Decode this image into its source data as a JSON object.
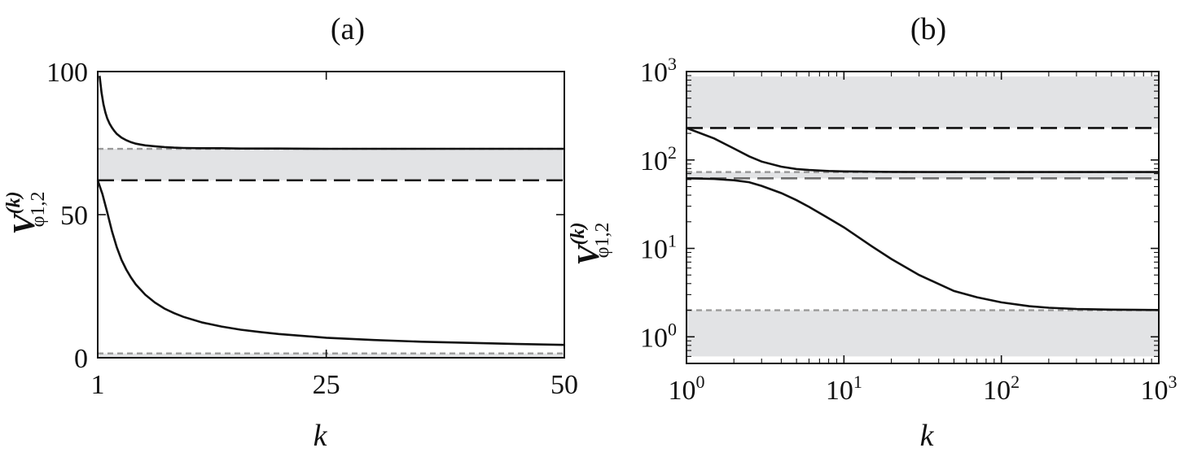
{
  "chart_data": [
    {
      "panel": "(a)",
      "type": "line",
      "xlabel": "k",
      "ylabel": {
        "main": "V",
        "sup": "(k)",
        "sub": "φ1,2"
      },
      "xlim": [
        1,
        50
      ],
      "ylim": [
        0,
        100
      ],
      "xticks": [
        1,
        25,
        50
      ],
      "yticks": [
        0,
        50,
        100
      ],
      "bands": [
        {
          "y0": 62,
          "y1": 73
        },
        {
          "y0": 0,
          "y1": 1.5
        }
      ],
      "reference_lines": [
        {
          "y": 73,
          "style": "dotted-grey"
        },
        {
          "y": 62,
          "style": "dashed-black"
        },
        {
          "y": 1.5,
          "style": "dotted-grey"
        }
      ],
      "series": [
        {
          "x": [
            1.2,
            1.4,
            1.6,
            1.8,
            2,
            2.25,
            2.5,
            2.75,
            3,
            3.5,
            4,
            4.5,
            5,
            5.5,
            6,
            7,
            8,
            9,
            10,
            12,
            14,
            16,
            18,
            20,
            25,
            30,
            35,
            40,
            45,
            50
          ],
          "y": [
            98.5,
            92.6,
            88.6,
            85.7,
            83.6,
            81.8,
            80.4,
            79.2,
            78.2,
            76.9,
            76.0,
            75.3,
            74.8,
            74.5,
            74.2,
            73.9,
            73.6,
            73.4,
            73.3,
            73.2,
            73.2,
            73.1,
            73.1,
            73.1,
            73.0,
            73.0,
            73.0,
            73.0,
            73.0,
            73.0
          ]
        },
        {
          "x": [
            1,
            1.5,
            2,
            2.5,
            3,
            3.5,
            4,
            4.5,
            5,
            6,
            7,
            8,
            9,
            10,
            12,
            14,
            16,
            18,
            20,
            25,
            30,
            35,
            40,
            45,
            50
          ],
          "y": [
            62,
            57.2,
            50.8,
            44.2,
            38.6,
            34.2,
            30.8,
            28.0,
            25.6,
            22.0,
            19.3,
            17.2,
            15.6,
            14.3,
            12.3,
            10.9,
            9.8,
            9.0,
            8.3,
            7.0,
            6.2,
            5.6,
            5.2,
            4.8,
            4.5
          ]
        }
      ]
    },
    {
      "panel": "(b)",
      "type": "line",
      "xlabel": "k",
      "ylabel": {
        "main": "V",
        "sup": "(k)",
        "sub": "φ1,2"
      },
      "xscale": "log",
      "yscale": "log",
      "xlim": [
        1,
        1000
      ],
      "ylim": [
        0.5,
        1000
      ],
      "xticks": [
        {
          "value": 1,
          "base": "10",
          "exp": "0"
        },
        {
          "value": 10,
          "base": "10",
          "exp": "1"
        },
        {
          "value": 100,
          "base": "10",
          "exp": "2"
        },
        {
          "value": 1000,
          "base": "10",
          "exp": "3"
        }
      ],
      "yticks": [
        {
          "value": 1,
          "base": "10",
          "exp": "0"
        },
        {
          "value": 10,
          "base": "10",
          "exp": "1"
        },
        {
          "value": 100,
          "base": "10",
          "exp": "2"
        },
        {
          "value": 1000,
          "base": "10",
          "exp": "3"
        }
      ],
      "bands": [
        {
          "y0": 230,
          "y1": 880
        },
        {
          "y0": 62,
          "y1": 73
        },
        {
          "y0": 0.6,
          "y1": 2.0
        }
      ],
      "reference_lines": [
        {
          "y": 230,
          "style": "dashed-black"
        },
        {
          "y": 73,
          "style": "dotted-grey"
        },
        {
          "y": 62,
          "style": "dashed-grey"
        },
        {
          "y": 2.0,
          "style": "dotted-grey"
        }
      ],
      "series": [
        {
          "x": [
            1,
            1.5,
            2,
            2.5,
            3,
            4,
            5,
            6,
            8,
            10,
            15,
            20,
            50,
            100,
            1000
          ],
          "y": [
            230,
            175,
            135,
            110,
            96,
            84,
            79,
            77,
            75,
            74.2,
            73.6,
            73.3,
            73.1,
            73.0,
            73.0
          ]
        },
        {
          "x": [
            1,
            1.5,
            2,
            2.5,
            3,
            4,
            5,
            6,
            8,
            10,
            15,
            20,
            30,
            50,
            70,
            100,
            150,
            200,
            300,
            500,
            1000
          ],
          "y": [
            62,
            61,
            59,
            56,
            51,
            42.2,
            35.1,
            29.5,
            21.9,
            17.3,
            10.6,
            7.6,
            5.0,
            3.3,
            2.8,
            2.45,
            2.22,
            2.13,
            2.06,
            2.03,
            2.01
          ]
        }
      ]
    }
  ]
}
